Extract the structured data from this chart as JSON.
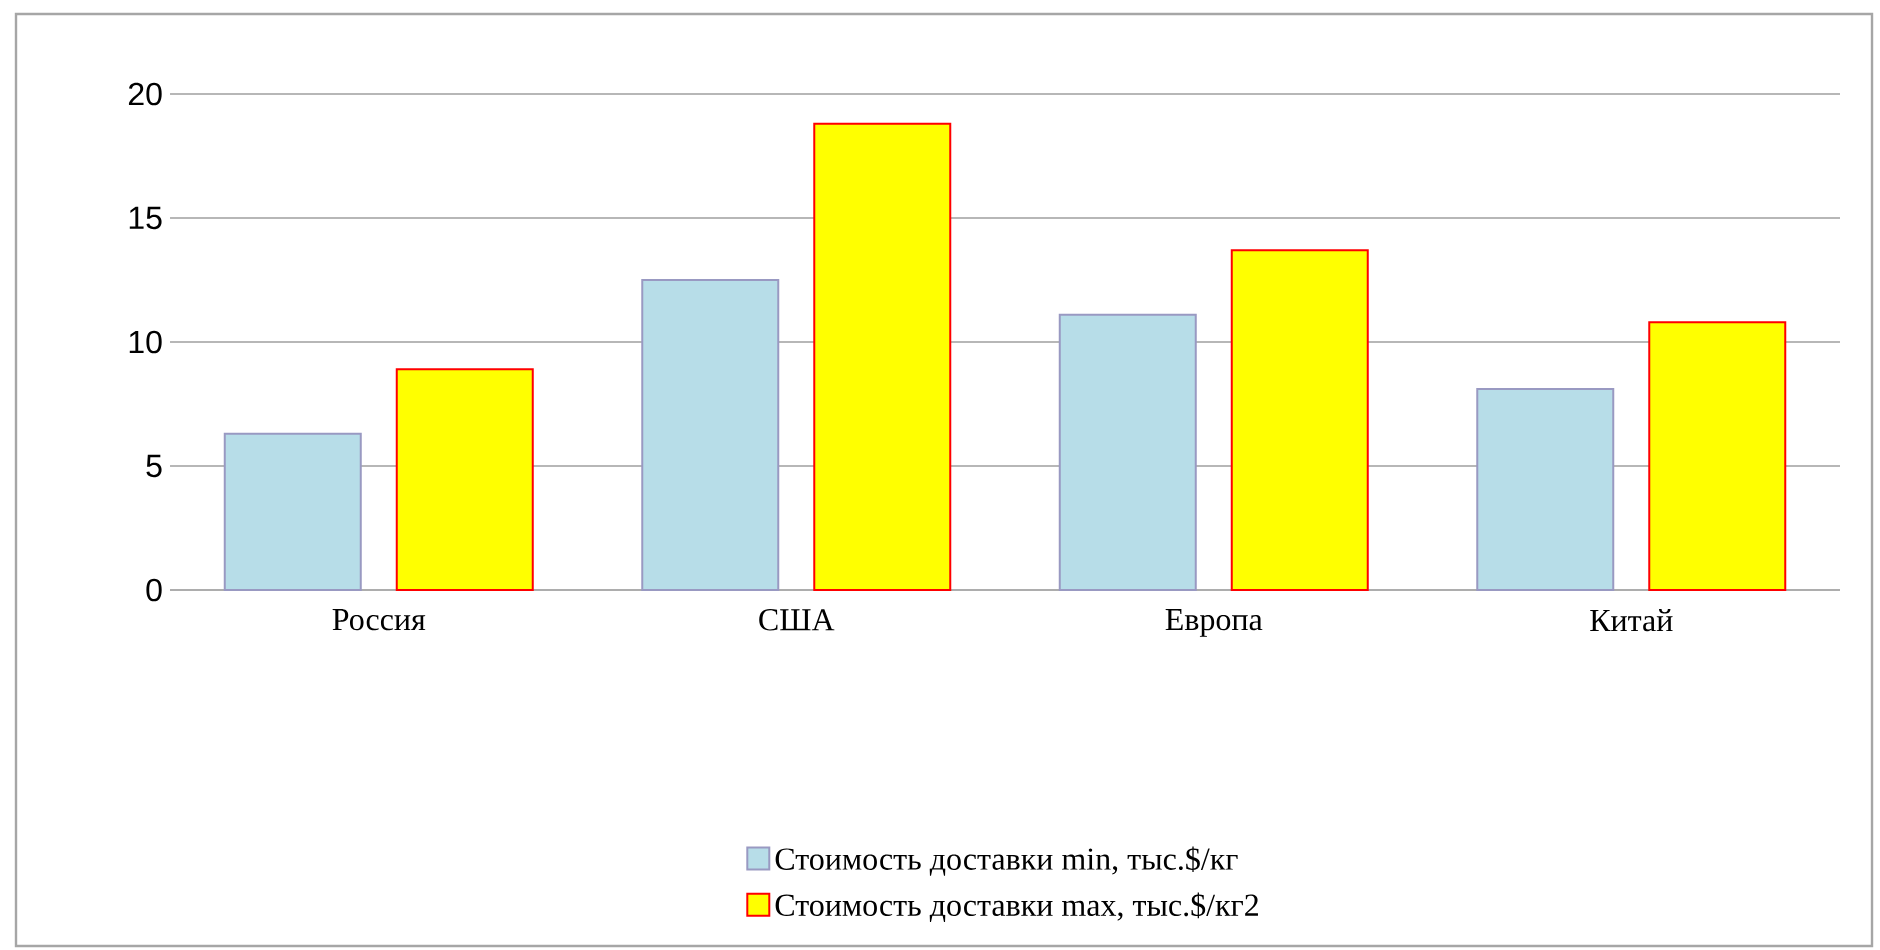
{
  "chart_data": {
    "type": "bar",
    "categories": [
      "Россия",
      "США",
      "Европа",
      "Китай"
    ],
    "series": [
      {
        "name": "Стоимость доставки min, тыс.$/кг",
        "color": "#b7dde8",
        "values": [
          6.3,
          12.5,
          11.1,
          8.1
        ]
      },
      {
        "name": "Стоимость доставки max, тыс.$/кг2",
        "color": "#ffff00",
        "values": [
          8.9,
          18.8,
          13.7,
          10.8
        ]
      }
    ],
    "ylim": [
      0,
      20
    ],
    "yticks": [
      0,
      5,
      10,
      15,
      20
    ],
    "grid": "y",
    "legend": "bottom"
  }
}
